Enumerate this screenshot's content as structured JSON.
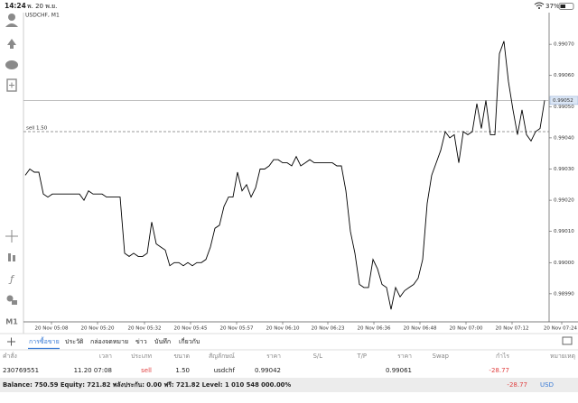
{
  "status_bar": {
    "time": "14:24",
    "date": "พ. 20 พ.ย.",
    "battery": "37%"
  },
  "toolbar": {
    "timeframe": "M1"
  },
  "chart_data": {
    "type": "line",
    "title": "USDCHF, M1",
    "color": "#000000",
    "values": [
      0.99028,
      0.9903,
      0.99029,
      0.99029,
      0.99022,
      0.99021,
      0.99022,
      0.99022,
      0.99022,
      0.99022,
      0.99022,
      0.99022,
      0.99022,
      0.9902,
      0.99023,
      0.99022,
      0.99022,
      0.99022,
      0.99021,
      0.99021,
      0.99021,
      0.99021,
      0.99003,
      0.99002,
      0.99003,
      0.99002,
      0.99002,
      0.99003,
      0.99013,
      0.99006,
      0.99005,
      0.99004,
      0.98999,
      0.99,
      0.99,
      0.98999,
      0.99,
      0.98999,
      0.99,
      0.99,
      0.99001,
      0.99005,
      0.99011,
      0.99012,
      0.99018,
      0.99021,
      0.99021,
      0.99029,
      0.99023,
      0.99025,
      0.99021,
      0.99024,
      0.9903,
      0.9903,
      0.99031,
      0.99033,
      0.99033,
      0.99032,
      0.99032,
      0.99031,
      0.99034,
      0.99031,
      0.99032,
      0.99033,
      0.99032,
      0.99032,
      0.99032,
      0.99032,
      0.99032,
      0.99031,
      0.99031,
      0.99023,
      0.9901,
      0.99003,
      0.98993,
      0.98992,
      0.98992,
      0.99001,
      0.98998,
      0.98993,
      0.98992,
      0.98985,
      0.98992,
      0.98989,
      0.98991,
      0.98992,
      0.98993,
      0.98995,
      0.99001,
      0.99019,
      0.99028,
      0.99032,
      0.99036,
      0.99042,
      0.9904,
      0.99041,
      0.99032,
      0.99042,
      0.99041,
      0.99042,
      0.99051,
      0.99043,
      0.99052,
      0.99041,
      0.99041,
      0.99067,
      0.99071,
      0.99058,
      0.99049,
      0.99041,
      0.99049,
      0.99041,
      0.99039,
      0.99042,
      0.99043,
      0.99052
    ],
    "xlim": [
      0,
      115
    ],
    "xticks": [
      {
        "value": 5.8,
        "label": "20 Nov 05:08"
      },
      {
        "value": 16,
        "label": "20 Nov 05:20"
      },
      {
        "value": 26.4,
        "label": "20 Nov 05:32"
      },
      {
        "value": 36.6,
        "label": "20 Nov 05:45"
      },
      {
        "value": 46.8,
        "label": "20 Nov 05:57"
      },
      {
        "value": 57,
        "label": "20 Nov 06:10"
      },
      {
        "value": 67,
        "label": "20 Nov 06:23"
      },
      {
        "value": 77.2,
        "label": "20 Nov 06:36"
      },
      {
        "value": 87.4,
        "label": "20 Nov 06:48"
      },
      {
        "value": 97.6,
        "label": "20 Nov 07:00"
      },
      {
        "value": 107.8,
        "label": "20 Nov 07:12"
      },
      {
        "value": 118.8,
        "label": "20 Nov 07:24"
      }
    ],
    "ylim": [
      0.98981,
      0.99079
    ],
    "yticks": [
      {
        "value": 0.9907,
        "label": "0.99070"
      },
      {
        "value": 0.9906,
        "label": "0.99060"
      },
      {
        "value": 0.9905,
        "label": "0.99050"
      },
      {
        "value": 0.9904,
        "label": "0.99040"
      },
      {
        "value": 0.9903,
        "label": "0.99030"
      },
      {
        "value": 0.9902,
        "label": "0.99020"
      },
      {
        "value": 0.9901,
        "label": "0.99010"
      },
      {
        "value": 0.99,
        "label": "0.99000"
      },
      {
        "value": 0.9899,
        "label": "0.98990"
      }
    ],
    "current_price": 0.99052,
    "order_line": {
      "label": "sell 1.50",
      "value": 0.99042
    }
  },
  "tabs": [
    "การซื้อขาย",
    "ประวัติ",
    "กล่องจดหมาย",
    "ข่าว",
    "บันทึก",
    "เกี่ยวกับ"
  ],
  "table": {
    "headers": [
      "คำสั่ง",
      "เวลา",
      "ประเภท",
      "ขนาด",
      "สัญลักษณ์",
      "ราคา",
      "S/L",
      "T/P",
      "ราคา",
      "Swap",
      "กำไร",
      "หมายเหตุ"
    ],
    "rows": [
      [
        "230769551",
        "11.20 07:08",
        "sell",
        "1.50",
        "usdchf",
        "0.99042",
        null,
        null,
        "0.99061",
        null,
        "-28.77",
        null
      ]
    ]
  },
  "footer": {
    "summary": "Balance: 750.59 Equity: 721.82 พลังประกัน: 0.00 ฟรี: 721.82 Level: 1 010 548 000.00%",
    "profit": "-28.77",
    "currency": "USD"
  }
}
